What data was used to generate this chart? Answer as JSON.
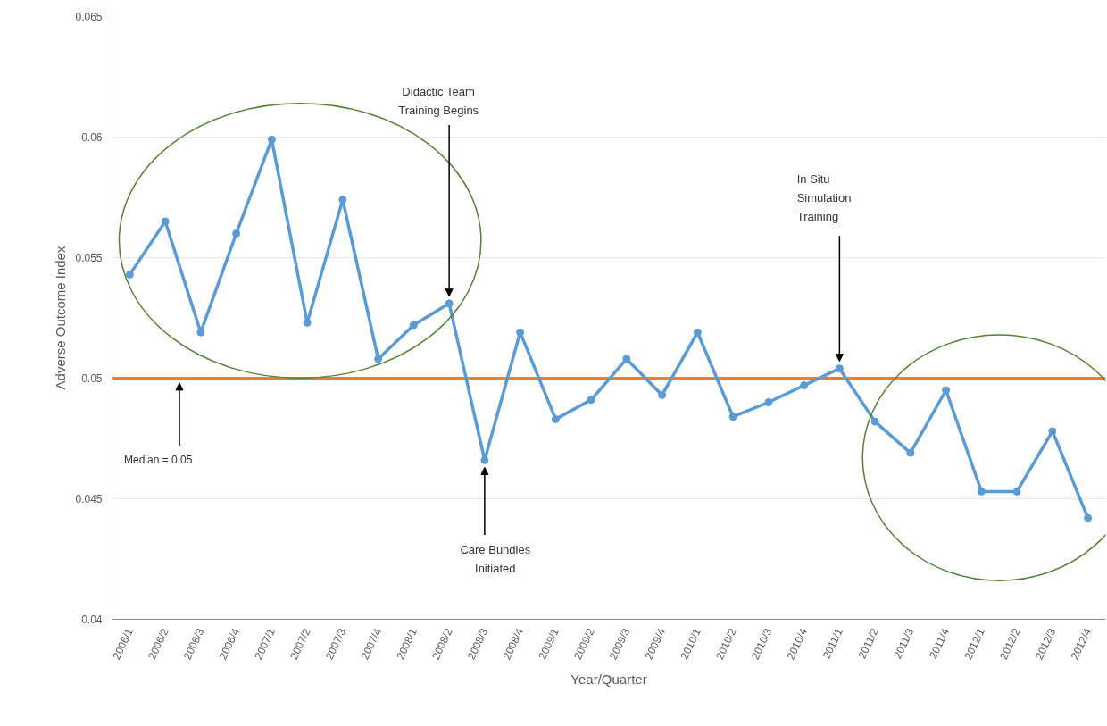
{
  "chart_data": {
    "type": "line",
    "xlabel": "Year/Quarter",
    "ylabel": "Adverse Outcome Index",
    "categories": [
      "2006/1",
      "2006/2",
      "2006/3",
      "2006/4",
      "2007/1",
      "2007/2",
      "2007/3",
      "2007/4",
      "2008/1",
      "2008/2",
      "2008/3",
      "2008/4",
      "2009/1",
      "2009/2",
      "2009/3",
      "2009/4",
      "2010/1",
      "2010/2",
      "2010/3",
      "2010/4",
      "2011/1",
      "2011/2",
      "2011/3",
      "2011/4",
      "2012/1",
      "2012/2",
      "2012/3",
      "2012/4"
    ],
    "series": [
      {
        "color": "#5b9bd5",
        "values": [
          0.0543,
          0.0565,
          0.0519,
          0.056,
          0.0599,
          0.0523,
          0.0574,
          0.0508,
          0.0522,
          0.0531,
          0.0466,
          0.0519,
          0.0483,
          0.0491,
          0.0508,
          0.0493,
          0.0519,
          0.0484,
          0.049,
          0.0497,
          0.0504,
          0.0482,
          0.0469,
          0.0495,
          0.0453,
          0.0453,
          0.0478,
          0.0442
        ]
      }
    ],
    "marker": "circle",
    "line_style": "solid",
    "ylim": [
      0.04,
      0.065
    ],
    "yticks": [
      0.04,
      0.045,
      0.05,
      0.055,
      0.06,
      0.065
    ],
    "grid": "y",
    "ref_lines": [
      {
        "axis": "y",
        "value": 0.05,
        "label": "Median = 0.05",
        "color": "#ed7d31"
      }
    ],
    "annotations": [
      {
        "text": "Didactic Team Training Begins",
        "x": "2008/2",
        "y": 0.0531
      },
      {
        "text": "Care Bundles Initiated",
        "x": "2008/3",
        "y": 0.0466
      },
      {
        "text": "In Situ Simulation Training",
        "x": "2011/1",
        "y": 0.0504
      }
    ]
  }
}
